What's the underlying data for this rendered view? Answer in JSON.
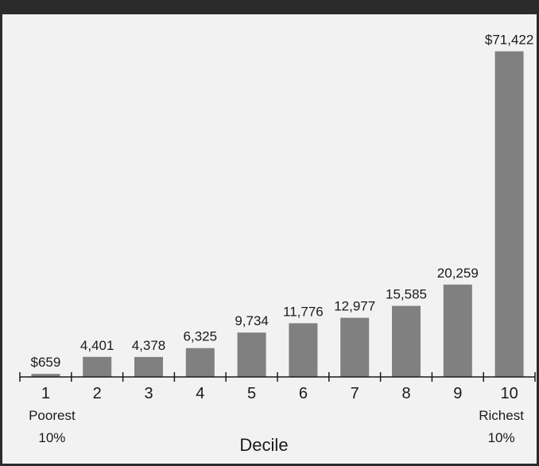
{
  "chart_data": {
    "type": "bar",
    "categories": [
      "1",
      "2",
      "3",
      "4",
      "5",
      "6",
      "7",
      "8",
      "9",
      "10"
    ],
    "values": [
      659,
      4401,
      4378,
      6325,
      9734,
      11776,
      12977,
      15585,
      20259,
      71422
    ],
    "value_labels": [
      "$659",
      "4,401",
      "4,378",
      "6,325",
      "9,734",
      "11,776",
      "12,977",
      "15,585",
      "20,259",
      "$71,422"
    ],
    "xlabel": "Decile",
    "ylabel": "",
    "ylim": [
      0,
      75000
    ],
    "first_label": [
      "Poorest",
      "10%"
    ],
    "last_label": [
      "Richest",
      "10%"
    ],
    "bar_color": "#808080",
    "grid": false,
    "legend": "none"
  }
}
